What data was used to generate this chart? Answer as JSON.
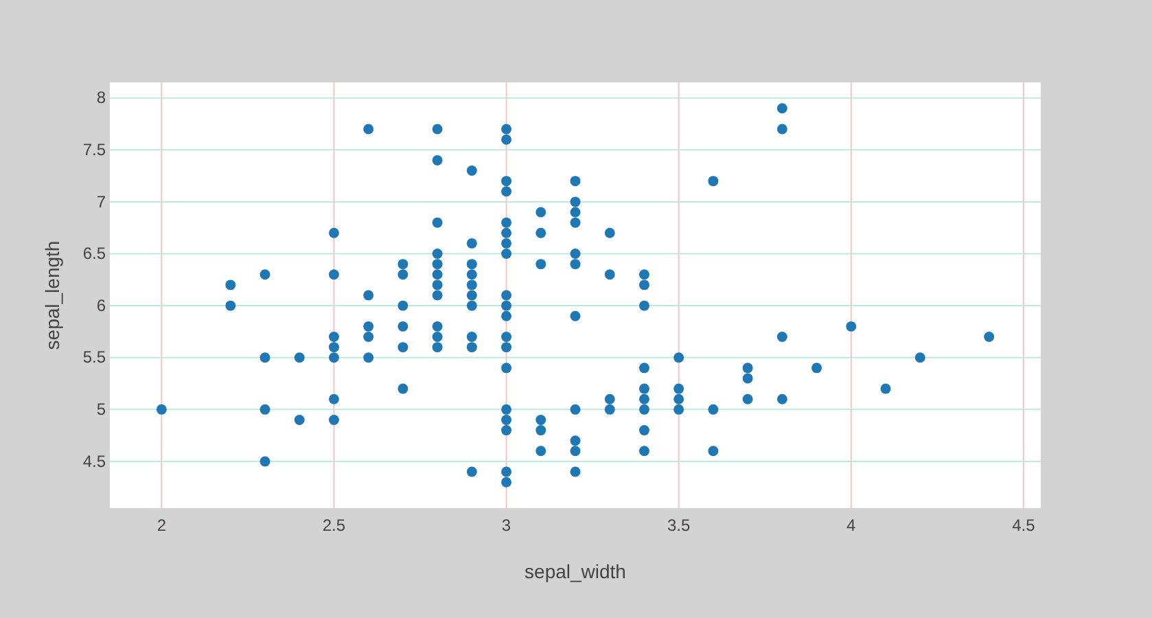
{
  "chart_data": {
    "type": "scatter",
    "xlabel": "sepal_width",
    "ylabel": "sepal_length",
    "xlim": [
      1.85,
      4.55
    ],
    "ylim": [
      4.05,
      8.15
    ],
    "xticks": [
      2,
      2.5,
      3,
      3.5,
      4,
      4.5
    ],
    "yticks": [
      4.5,
      5,
      5.5,
      6,
      6.5,
      7,
      7.5,
      8
    ],
    "grid": true,
    "marker": "circle",
    "series": [
      {
        "color": "#1f77b4",
        "x": [
          3.5,
          3.0,
          3.2,
          3.1,
          3.6,
          3.9,
          3.4,
          3.4,
          2.9,
          3.1,
          3.7,
          3.4,
          3.0,
          3.0,
          4.0,
          4.4,
          3.8,
          3.8,
          3.4,
          3.7,
          3.6,
          3.3,
          3.0,
          3.5,
          3.4,
          3.1,
          4.1,
          4.2,
          3.2,
          3.5,
          3.0,
          3.4,
          3.5,
          2.3,
          3.2,
          3.2,
          3.7,
          3.3,
          3.2,
          3.2,
          3.1,
          2.3,
          2.8,
          2.8,
          3.3,
          2.4,
          2.9,
          2.7,
          2.0,
          3.0,
          2.2,
          2.9,
          2.9,
          3.1,
          3.0,
          2.7,
          2.2,
          2.5,
          3.2,
          2.8,
          2.5,
          2.9,
          3.0,
          2.8,
          3.0,
          2.9,
          2.6,
          2.4,
          2.7,
          3.0,
          3.4,
          2.3,
          2.5,
          2.6,
          3.0,
          2.6,
          2.3,
          2.7,
          3.0,
          2.9,
          2.9,
          2.5,
          3.0,
          2.9,
          3.0,
          3.0,
          2.5,
          2.9,
          2.5,
          3.6,
          3.2,
          2.7,
          3.0,
          2.5,
          2.8,
          3.8,
          2.6,
          3.2,
          2.8,
          2.8,
          2.7,
          3.3,
          3.2,
          2.8,
          2.8,
          3.0,
          2.8,
          3.8,
          2.8,
          2.6,
          3.0,
          3.4,
          3.1,
          3.0,
          3.2,
          3.4
        ],
        "values": [
          5.1,
          4.9,
          4.7,
          4.6,
          5.0,
          5.4,
          4.6,
          5.0,
          4.4,
          4.9,
          5.4,
          4.8,
          4.8,
          4.3,
          5.8,
          5.7,
          5.7,
          5.1,
          5.4,
          5.1,
          4.6,
          5.1,
          5.0,
          5.2,
          5.2,
          4.8,
          5.2,
          5.5,
          5.0,
          5.5,
          4.4,
          5.1,
          5.0,
          4.5,
          4.4,
          4.6,
          5.3,
          5.0,
          7.0,
          6.4,
          6.9,
          5.5,
          6.5,
          5.7,
          6.3,
          4.9,
          6.6,
          5.2,
          5.0,
          5.9,
          6.0,
          6.1,
          5.6,
          6.7,
          5.6,
          5.8,
          6.2,
          5.6,
          5.9,
          6.1,
          6.3,
          6.4,
          6.6,
          6.8,
          6.7,
          6.0,
          5.7,
          5.5,
          6.0,
          5.4,
          6.0,
          6.3,
          5.5,
          5.5,
          6.1,
          5.8,
          5.0,
          5.6,
          5.7,
          5.7,
          6.2,
          5.1,
          7.1,
          6.3,
          6.5,
          7.6,
          4.9,
          7.3,
          6.7,
          7.2,
          6.5,
          6.4,
          6.8,
          5.7,
          5.8,
          7.7,
          7.7,
          6.9,
          5.6,
          7.7,
          6.3,
          6.7,
          7.2,
          6.2,
          6.4,
          7.2,
          7.4,
          7.9,
          6.3,
          6.1,
          7.7,
          6.3,
          6.4,
          6.0,
          6.8,
          6.2
        ]
      }
    ]
  }
}
